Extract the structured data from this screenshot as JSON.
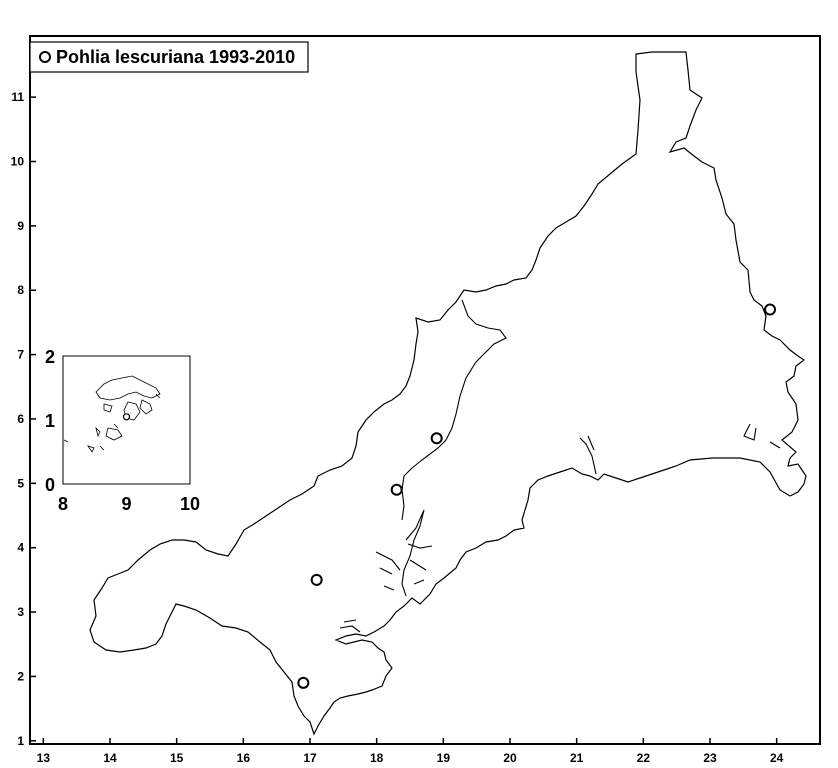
{
  "legend": {
    "label": "Pohlia lescuriana 1993-2010",
    "marker": "open-circle"
  },
  "axes": {
    "x_ticks": [
      "13",
      "14",
      "15",
      "16",
      "17",
      "18",
      "19",
      "20",
      "21",
      "22",
      "23",
      "24"
    ],
    "y_ticks": [
      "1",
      "2",
      "3",
      "4",
      "5",
      "6",
      "7",
      "8",
      "9",
      "10",
      "11"
    ],
    "x_range": [
      12.8,
      24.65
    ],
    "y_range": [
      0.95,
      11.95
    ]
  },
  "inset": {
    "x_ticks": [
      "8",
      "9",
      "10"
    ],
    "y_ticks": [
      "0",
      "1",
      "2"
    ],
    "x_range": [
      8,
      10
    ],
    "y_range": [
      0,
      2
    ],
    "records": [
      {
        "x": 9.0,
        "y": 1.05
      }
    ]
  },
  "chart_data": {
    "type": "scatter",
    "series": [
      {
        "name": "Pohlia lescuriana 1993-2010",
        "points": [
          {
            "x": 16.9,
            "y": 1.9
          },
          {
            "x": 17.1,
            "y": 3.5
          },
          {
            "x": 18.3,
            "y": 4.9
          },
          {
            "x": 18.9,
            "y": 5.7
          },
          {
            "x": 23.9,
            "y": 7.7
          }
        ]
      }
    ],
    "xlim": [
      12.8,
      24.65
    ],
    "ylim": [
      0.95,
      11.95
    ],
    "grid": false,
    "legend_position": "top-left"
  },
  "colors": {
    "outline": "#000000",
    "background": "#ffffff"
  }
}
